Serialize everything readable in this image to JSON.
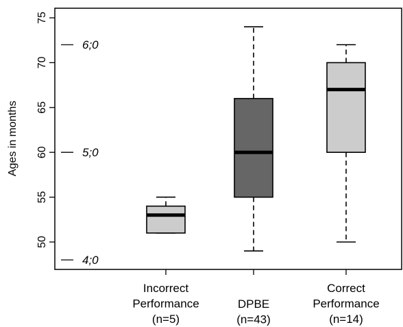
{
  "chart_data": {
    "type": "boxplot",
    "title": "",
    "xlabel": "",
    "ylabel": "Ages in months",
    "ylim": [
      47.5,
      76
    ],
    "yticks": [
      50,
      55,
      60,
      65,
      70,
      75
    ],
    "grid": false,
    "categories": [
      {
        "lines": [
          "Incorrect",
          "Performance",
          "(n=5)"
        ]
      },
      {
        "lines": [
          "DPBE",
          "(n=43)"
        ]
      },
      {
        "lines": [
          "Correct",
          "Performance",
          "(n=14)"
        ]
      }
    ],
    "boxes": [
      {
        "min": 51,
        "q1": 51,
        "median": 53,
        "q3": 54,
        "max": 55,
        "color": "#cccccc"
      },
      {
        "min": 49,
        "q1": 55,
        "median": 60,
        "q3": 66,
        "max": 74,
        "color": "#666666"
      },
      {
        "min": 50,
        "q1": 60,
        "median": 67,
        "q3": 70,
        "max": 72,
        "color": "#cccccc"
      }
    ],
    "annotations": [
      {
        "value": 72,
        "label": "6;0"
      },
      {
        "value": 60,
        "label": "5;0"
      },
      {
        "value": 48,
        "label": "4;0"
      }
    ]
  }
}
